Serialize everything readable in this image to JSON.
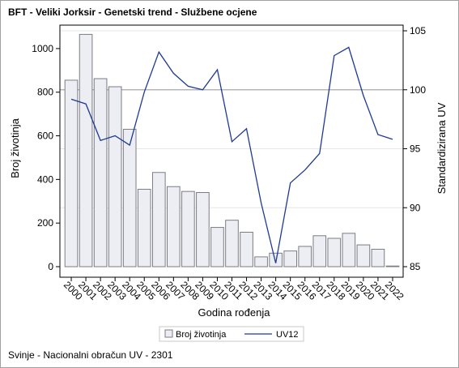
{
  "page": {
    "title": "BFT - Veliki Jorksir - Genetski trend - Službene ocjene",
    "footnote": "Svinje - Nacionalni obračun UV - 2301"
  },
  "chart_data": {
    "type": "bar",
    "title": "BFT - Veliki Jorksir - Genetski trend - Službene ocjene",
    "xlabel": "Godina rođenja",
    "ylabel": "Broj životinja",
    "y2label": "Standardizirana UV",
    "categories": [
      "2000",
      "2001",
      "2002",
      "2003",
      "2004",
      "2005",
      "2006",
      "2007",
      "2008",
      "2009",
      "2010",
      "2011",
      "2012",
      "2013",
      "2014",
      "2015",
      "2016",
      "2017",
      "2018",
      "2019",
      "2020",
      "2021",
      "2022"
    ],
    "series": [
      {
        "name": "Broj životinja",
        "type": "bar",
        "axis": "left",
        "values": [
          855,
          1065,
          862,
          825,
          630,
          355,
          432,
          367,
          345,
          340,
          180,
          213,
          158,
          45,
          62,
          72,
          93,
          142,
          130,
          153,
          100,
          80,
          3
        ]
      },
      {
        "name": "UV12",
        "type": "line",
        "axis": "right",
        "values": [
          99.2,
          98.8,
          95.7,
          96.1,
          95.3,
          99.8,
          103.2,
          101.4,
          100.3,
          100.0,
          101.7,
          95.6,
          96.7,
          90.4,
          85.3,
          92.1,
          93.2,
          94.6,
          102.9,
          103.6,
          99.5,
          96.2,
          95.8
        ]
      }
    ],
    "ylim": [
      0,
      1100
    ],
    "yticks": [
      0,
      200,
      400,
      600,
      800,
      1000
    ],
    "y2lim": [
      85,
      105
    ],
    "y2ticks": [
      85,
      90,
      95,
      100,
      105
    ],
    "reference_line_y2": 100,
    "colors": {
      "bar_fill": "#eceef4",
      "bar_stroke": "#7c7c84",
      "line": "#1f3a93",
      "ref_line": "#a8a8a8",
      "grid": "#e6e6e6"
    },
    "legend": {
      "placement": "bottom",
      "entries": [
        "Broj životinja",
        "UV12"
      ]
    }
  }
}
